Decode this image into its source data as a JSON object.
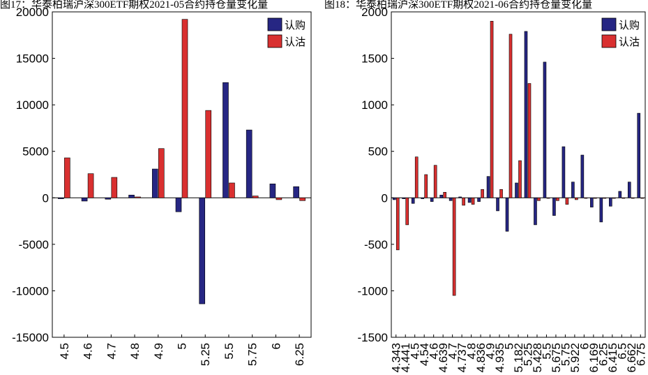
{
  "chart_data": [
    {
      "type": "bar",
      "title": "图17：华泰柏瑞沪深300ETF期权2021-05合约持仓量变化量",
      "xlabel": "",
      "ylabel": "",
      "ylim": [
        -15000,
        20000
      ],
      "yticks": [
        -15000,
        -10000,
        -5000,
        0,
        5000,
        10000,
        15000,
        20000
      ],
      "grid": false,
      "legend_position": "top-right",
      "categories": [
        "4.5",
        "4.6",
        "4.7",
        "4.8",
        "4.9",
        "5",
        "5.25",
        "5.5",
        "5.75",
        "6",
        "6.25"
      ],
      "series": [
        {
          "name": "认购",
          "color": "#262683",
          "values": [
            -100,
            -350,
            -150,
            300,
            3100,
            -1500,
            -11400,
            12400,
            7300,
            1500,
            1200
          ]
        },
        {
          "name": "认沽",
          "color": "#d93030",
          "values": [
            4300,
            2600,
            2200,
            100,
            5300,
            19200,
            9400,
            1600,
            200,
            -200,
            -300
          ]
        }
      ]
    },
    {
      "type": "bar",
      "title": "图18：华泰柏瑞沪深300ETF期权2021-06合约持仓量变化量",
      "xlabel": "",
      "ylabel": "",
      "ylim": [
        -1500,
        2000
      ],
      "yticks": [
        -1500,
        -1000,
        -500,
        0,
        500,
        1000,
        1500,
        2000
      ],
      "grid": false,
      "legend_position": "top-right",
      "categories": [
        "4.343",
        "4.441",
        "4.5",
        "4.54",
        "4.6",
        "4.639",
        "4.7",
        "4.737",
        "4.8",
        "4.836",
        "4.9",
        "4.935",
        "5",
        "5.182",
        "5.25",
        "5.428",
        "5.5",
        "5.675",
        "5.75",
        "5.922",
        "6",
        "6.169",
        "6.25",
        "6.415",
        "6.5",
        "6.662",
        "6.75"
      ],
      "series": [
        {
          "name": "认购",
          "color": "#262683",
          "values": [
            -20,
            -10,
            -60,
            -10,
            -40,
            30,
            -30,
            10,
            -50,
            -40,
            230,
            -140,
            -360,
            160,
            1790,
            -290,
            1460,
            -190,
            550,
            170,
            460,
            -100,
            -260,
            -90,
            70,
            170,
            910
          ]
        },
        {
          "name": "认沽",
          "color": "#d93030",
          "values": [
            -560,
            -290,
            440,
            250,
            350,
            60,
            -1050,
            -80,
            -70,
            90,
            1900,
            90,
            1760,
            400,
            1230,
            -30,
            0,
            -30,
            -70,
            -20,
            0,
            0,
            0,
            0,
            0,
            0,
            0
          ]
        }
      ]
    }
  ]
}
